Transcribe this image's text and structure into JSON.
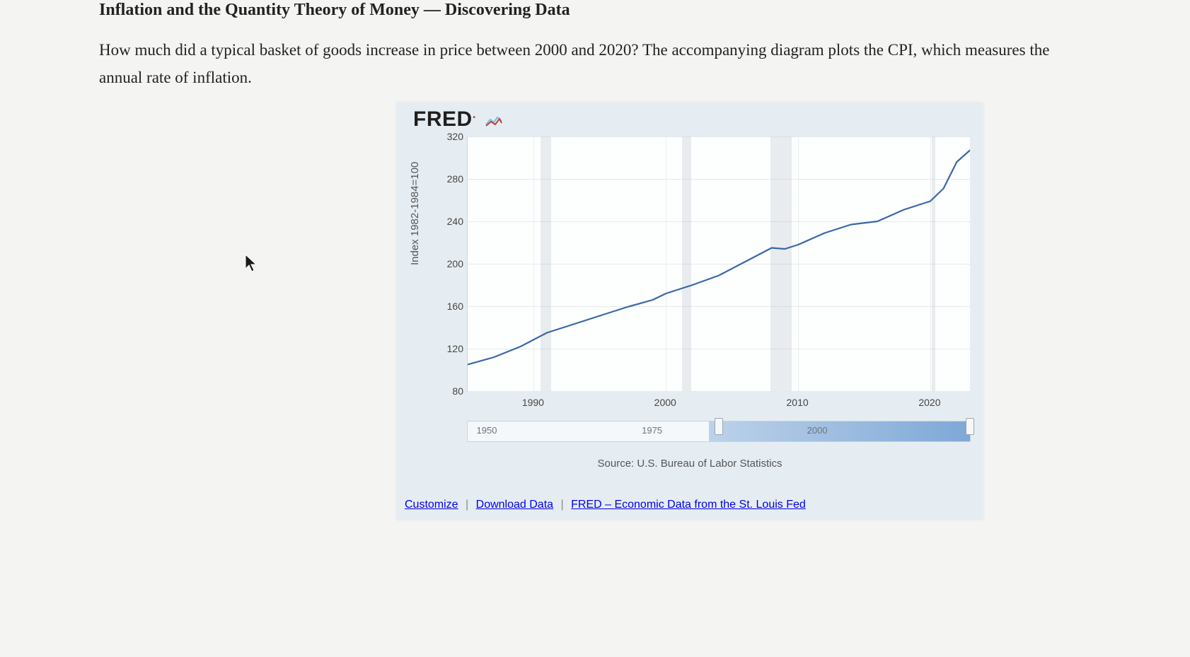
{
  "heading": "Inflation and the Quantity Theory of Money — Discovering Data",
  "body": "How much did a typical basket of goods increase in price between 2000 and 2020? The accompanying diagram plots the CPI, which measures the annual rate of inflation.",
  "fred_logo": "FRED",
  "chart": {
    "type": "line",
    "y_axis_label": "Index 1982-1984=100",
    "ylim": [
      80,
      320
    ],
    "ytick_step": 40,
    "y_ticks": [
      80,
      120,
      160,
      200,
      240,
      280,
      320
    ],
    "xlim": [
      1985,
      2023
    ],
    "x_ticks": [
      1990,
      2000,
      2010,
      2020
    ],
    "line_color": "#3a66a8",
    "line_width": 2.2,
    "background_color": "#fdfefe",
    "grid_color": "#e6e9ec",
    "recession_band_color": "rgba(180,190,200,0.28)",
    "recession_bands": [
      [
        1990.5,
        1991.3
      ],
      [
        2001.2,
        2001.9
      ],
      [
        2007.9,
        2009.5
      ],
      [
        2020.1,
        2020.4
      ]
    ],
    "series": [
      {
        "x": 1985,
        "y": 105
      },
      {
        "x": 1987,
        "y": 112
      },
      {
        "x": 1989,
        "y": 122
      },
      {
        "x": 1991,
        "y": 135
      },
      {
        "x": 1993,
        "y": 143
      },
      {
        "x": 1995,
        "y": 151
      },
      {
        "x": 1997,
        "y": 159
      },
      {
        "x": 1999,
        "y": 166
      },
      {
        "x": 2000,
        "y": 172
      },
      {
        "x": 2002,
        "y": 180
      },
      {
        "x": 2004,
        "y": 189
      },
      {
        "x": 2006,
        "y": 202
      },
      {
        "x": 2008,
        "y": 215
      },
      {
        "x": 2009,
        "y": 214
      },
      {
        "x": 2010,
        "y": 218
      },
      {
        "x": 2012,
        "y": 229
      },
      {
        "x": 2014,
        "y": 237
      },
      {
        "x": 2016,
        "y": 240
      },
      {
        "x": 2018,
        "y": 251
      },
      {
        "x": 2020,
        "y": 259
      },
      {
        "x": 2021,
        "y": 271
      },
      {
        "x": 2022,
        "y": 296
      },
      {
        "x": 2023,
        "y": 307
      }
    ]
  },
  "slider": {
    "labels": [
      {
        "x_year": 1950,
        "text": "1950"
      },
      {
        "x_year": 1975,
        "text": "1975"
      },
      {
        "x_year": 2000,
        "text": "2000"
      }
    ],
    "range": [
      1947,
      2023
    ],
    "handle_left_year": 1985,
    "handle_right_year": 2023
  },
  "source": "Source: U.S. Bureau of Labor Statistics",
  "links": {
    "customize": "Customize",
    "download": "Download Data",
    "fred": "FRED – Economic Data from the St. Louis Fed"
  }
}
